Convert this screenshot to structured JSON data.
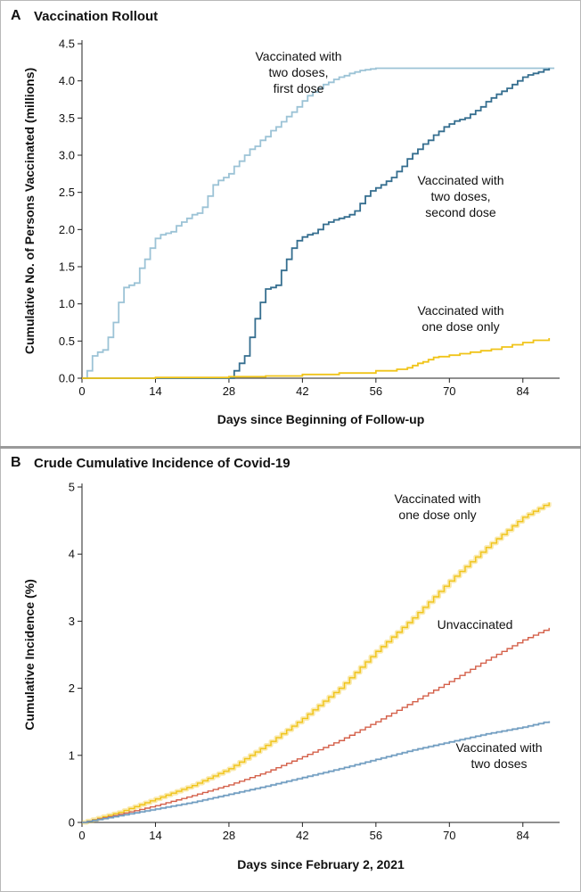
{
  "chart_data": [
    {
      "panel": "A",
      "type": "line",
      "title": "Vaccination Rollout",
      "xlabel": "Days since Beginning of Follow-up",
      "ylabel": "Cumulative No. of Persons Vaccinated (millions)",
      "xlim": [
        0,
        91
      ],
      "ylim": [
        0,
        4.5
      ],
      "xticks": [
        "0",
        "14",
        "28",
        "42",
        "56",
        "70",
        "84"
      ],
      "yticks": [
        "0.0",
        "0.5",
        "1.0",
        "1.5",
        "2.0",
        "2.5",
        "3.0",
        "3.5",
        "4.0",
        "4.5"
      ],
      "series": [
        {
          "name": "Vaccinated with two doses, first dose",
          "color": "#9cc3d6",
          "x": [
            0,
            1,
            2,
            3,
            4,
            5,
            6,
            7,
            8,
            9,
            10,
            11,
            12,
            13,
            14,
            15,
            16,
            17,
            18,
            19,
            20,
            21,
            22,
            23,
            24,
            25,
            26,
            27,
            28,
            29,
            30,
            31,
            32,
            33,
            34,
            35,
            36,
            37,
            38,
            39,
            40,
            41,
            42,
            43,
            44,
            45,
            46,
            47,
            48,
            49,
            50,
            51,
            52,
            53,
            54,
            55,
            56,
            57,
            58,
            90
          ],
          "y": [
            0,
            0.1,
            0.3,
            0.35,
            0.38,
            0.55,
            0.75,
            1.02,
            1.22,
            1.25,
            1.28,
            1.48,
            1.6,
            1.75,
            1.88,
            1.93,
            1.95,
            1.97,
            2.05,
            2.1,
            2.15,
            2.2,
            2.22,
            2.3,
            2.45,
            2.6,
            2.66,
            2.7,
            2.75,
            2.85,
            2.92,
            3.0,
            3.08,
            3.12,
            3.2,
            3.25,
            3.33,
            3.38,
            3.45,
            3.52,
            3.58,
            3.65,
            3.73,
            3.8,
            3.85,
            3.9,
            3.95,
            3.98,
            4.02,
            4.05,
            4.07,
            4.1,
            4.12,
            4.14,
            4.15,
            4.16,
            4.17,
            4.17,
            4.17,
            4.17
          ]
        },
        {
          "name": "Vaccinated with two doses, second dose",
          "color": "#356e8f",
          "x": [
            0,
            28,
            29,
            30,
            31,
            32,
            33,
            34,
            35,
            36,
            37,
            38,
            39,
            40,
            41,
            42,
            43,
            44,
            45,
            46,
            47,
            48,
            49,
            50,
            51,
            52,
            53,
            54,
            55,
            56,
            57,
            58,
            59,
            60,
            61,
            62,
            63,
            64,
            65,
            66,
            67,
            68,
            69,
            70,
            71,
            72,
            73,
            74,
            75,
            76,
            77,
            78,
            79,
            80,
            81,
            82,
            83,
            84,
            85,
            86,
            87,
            88,
            89
          ],
          "y": [
            0,
            0,
            0.1,
            0.2,
            0.3,
            0.55,
            0.8,
            1.02,
            1.2,
            1.22,
            1.25,
            1.45,
            1.6,
            1.75,
            1.85,
            1.9,
            1.93,
            1.95,
            2.0,
            2.07,
            2.1,
            2.13,
            2.15,
            2.17,
            2.2,
            2.25,
            2.35,
            2.45,
            2.52,
            2.56,
            2.6,
            2.65,
            2.7,
            2.78,
            2.85,
            2.95,
            3.02,
            3.08,
            3.15,
            3.2,
            3.27,
            3.32,
            3.38,
            3.42,
            3.46,
            3.48,
            3.5,
            3.55,
            3.6,
            3.65,
            3.72,
            3.77,
            3.82,
            3.86,
            3.9,
            3.95,
            4.0,
            4.05,
            4.08,
            4.1,
            4.12,
            4.15,
            4.17
          ]
        },
        {
          "name": "Vaccinated with one dose only",
          "color": "#f0c419",
          "x": [
            0,
            14,
            28,
            35,
            42,
            49,
            56,
            60,
            62,
            63,
            64,
            65,
            66,
            67,
            68,
            70,
            72,
            74,
            76,
            78,
            80,
            82,
            84,
            86,
            89
          ],
          "y": [
            0,
            0.01,
            0.02,
            0.03,
            0.05,
            0.07,
            0.1,
            0.12,
            0.14,
            0.17,
            0.2,
            0.22,
            0.25,
            0.28,
            0.29,
            0.31,
            0.33,
            0.35,
            0.37,
            0.39,
            0.42,
            0.45,
            0.48,
            0.51,
            0.54
          ]
        }
      ],
      "annotations": [
        {
          "lines": [
            "Vaccinated with",
            "two doses,",
            "first dose"
          ]
        },
        {
          "lines": [
            "Vaccinated with",
            "two doses,",
            "second dose"
          ]
        },
        {
          "lines": [
            "Vaccinated with",
            "one dose only"
          ]
        }
      ]
    },
    {
      "panel": "B",
      "type": "line",
      "title": "Crude Cumulative Incidence of Covid-19",
      "xlabel": "Days since February 2, 2021",
      "ylabel": "Cumulative Incidence (%)",
      "xlim": [
        0,
        91
      ],
      "ylim": [
        0,
        5
      ],
      "xticks": [
        "0",
        "14",
        "28",
        "42",
        "56",
        "70",
        "84"
      ],
      "yticks": [
        "0",
        "1",
        "2",
        "3",
        "4",
        "5"
      ],
      "series": [
        {
          "name": "Vaccinated with one dose only",
          "color": "#f0c419",
          "x": [
            0,
            7,
            14,
            21,
            28,
            35,
            42,
            49,
            56,
            63,
            70,
            77,
            84,
            89
          ],
          "y": [
            0,
            0.15,
            0.35,
            0.55,
            0.8,
            1.15,
            1.55,
            2.0,
            2.55,
            3.05,
            3.6,
            4.1,
            4.55,
            4.77
          ]
        },
        {
          "name": "Unvaccinated",
          "color": "#d4604a",
          "x": [
            0,
            7,
            14,
            21,
            28,
            35,
            42,
            49,
            56,
            63,
            70,
            77,
            84,
            89
          ],
          "y": [
            0,
            0.12,
            0.25,
            0.4,
            0.56,
            0.75,
            0.98,
            1.22,
            1.5,
            1.8,
            2.1,
            2.42,
            2.72,
            2.9
          ]
        },
        {
          "name": "Vaccinated with two doses",
          "color": "#6f9cc0",
          "x": [
            0,
            7,
            14,
            21,
            28,
            35,
            42,
            49,
            56,
            63,
            70,
            77,
            84,
            89
          ],
          "y": [
            0,
            0.1,
            0.2,
            0.3,
            0.42,
            0.54,
            0.67,
            0.8,
            0.94,
            1.08,
            1.2,
            1.32,
            1.42,
            1.51
          ]
        }
      ],
      "annotations": [
        {
          "lines": [
            "Vaccinated with",
            "one dose only"
          ]
        },
        {
          "lines": [
            "Unvaccinated"
          ]
        },
        {
          "lines": [
            "Vaccinated with",
            "two doses"
          ]
        }
      ]
    }
  ]
}
